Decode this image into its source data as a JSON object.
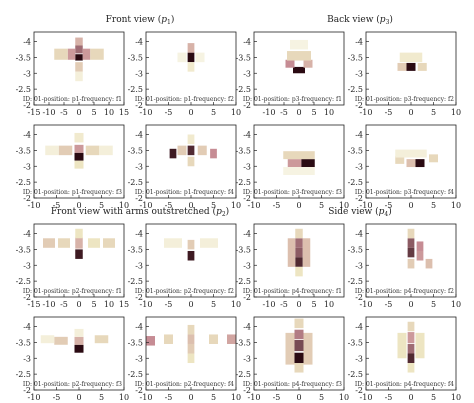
{
  "figure": {
    "section_titles": [
      {
        "main": "Front view",
        "sym": "p",
        "sub": "1"
      },
      {
        "main": "Back view",
        "sym": "p",
        "sub": "3"
      },
      {
        "main": "Front view with arms outstretched",
        "sym": "p",
        "sub": "2"
      },
      {
        "main": "Side view",
        "sym": "p",
        "sub": "4"
      }
    ]
  },
  "chart_data": {
    "type": "heatmap",
    "colormap": {
      "low": "#ffffff",
      "mid1": "#ede5c2",
      "mid2": "#c68c94",
      "high": "#2a0a12"
    },
    "ylim": [
      -4.3,
      -2
    ],
    "y_ticks": [
      "-4",
      "-3.5",
      "-3",
      "-2.5",
      "-2"
    ],
    "x_ticks_wide": [
      "-15",
      "-10",
      "-5",
      "0",
      "5",
      "10",
      "15"
    ],
    "x_ticks_narrow": [
      "-10",
      "-5",
      "0",
      "5",
      "10"
    ],
    "panels": [
      {
        "caption": "ID: 01-position: p1-frequency: f1",
        "xlim": [
          -15,
          15
        ],
        "cells": [
          {
            "x": 0,
            "y": -3.5,
            "v": 1.0,
            "w": 2.5,
            "h": 0.2
          },
          {
            "x": 0,
            "y": -3.75,
            "v": 0.7,
            "w": 2.5,
            "h": 0.25
          },
          {
            "x": 0,
            "y": -4.0,
            "v": 0.45,
            "w": 2.5,
            "h": 0.25
          },
          {
            "x": -2.5,
            "y": -3.6,
            "v": 0.55,
            "w": 2.5,
            "h": 0.35
          },
          {
            "x": 2.5,
            "y": -3.6,
            "v": 0.55,
            "w": 2.5,
            "h": 0.35
          },
          {
            "x": -6,
            "y": -3.6,
            "v": 0.3,
            "w": 4.5,
            "h": 0.35
          },
          {
            "x": 6,
            "y": -3.6,
            "v": 0.3,
            "w": 4.5,
            "h": 0.35
          },
          {
            "x": 0,
            "y": -3.2,
            "v": 0.35,
            "w": 2.5,
            "h": 0.3
          },
          {
            "x": 0,
            "y": -2.9,
            "v": 0.15,
            "w": 2.5,
            "h": 0.3
          }
        ]
      },
      {
        "caption": "ID: 01-position: p1-frequency: f2",
        "xlim": [
          -10,
          10
        ],
        "cells": [
          {
            "x": 0,
            "y": -3.5,
            "v": 1.0,
            "w": 1.5,
            "h": 0.3
          },
          {
            "x": 0,
            "y": -3.8,
            "v": 0.45,
            "w": 1.5,
            "h": 0.3
          },
          {
            "x": 0,
            "y": -3.2,
            "v": 0.2,
            "w": 1.5,
            "h": 0.3
          },
          {
            "x": -2,
            "y": -3.5,
            "v": 0.12,
            "w": 2,
            "h": 0.3
          },
          {
            "x": 2,
            "y": -3.5,
            "v": 0.12,
            "w": 2,
            "h": 0.3
          }
        ]
      },
      {
        "caption": "ID: 01-position: p3-frequency: f1",
        "xlim": [
          -15,
          15
        ],
        "cells": [
          {
            "x": 0,
            "y": -3.1,
            "v": 1.0,
            "w": 4,
            "h": 0.2
          },
          {
            "x": -3,
            "y": -3.3,
            "v": 0.6,
            "w": 3,
            "h": 0.25
          },
          {
            "x": 3,
            "y": -3.3,
            "v": 0.45,
            "w": 3,
            "h": 0.25
          },
          {
            "x": 0,
            "y": -3.55,
            "v": 0.3,
            "w": 8,
            "h": 0.3
          },
          {
            "x": 0,
            "y": -3.9,
            "v": 0.12,
            "w": 6,
            "h": 0.3
          }
        ]
      },
      {
        "caption": "ID: 01-position: p3-frequency: f2",
        "xlim": [
          -10,
          10
        ],
        "cells": [
          {
            "x": 0,
            "y": -3.2,
            "v": 1.0,
            "w": 2,
            "h": 0.25
          },
          {
            "x": -2,
            "y": -3.2,
            "v": 0.35,
            "w": 2,
            "h": 0.25
          },
          {
            "x": 2.5,
            "y": -3.2,
            "v": 0.3,
            "w": 2,
            "h": 0.25
          },
          {
            "x": 0,
            "y": -3.5,
            "v": 0.2,
            "w": 5,
            "h": 0.3
          }
        ]
      },
      {
        "caption": "ID: 01-position: p1-frequency: f3",
        "xlim": [
          -10,
          10
        ],
        "cells": [
          {
            "x": 0,
            "y": -3.3,
            "v": 1.0,
            "w": 2,
            "h": 0.25
          },
          {
            "x": 0,
            "y": -3.55,
            "v": 0.55,
            "w": 2,
            "h": 0.25
          },
          {
            "x": -3,
            "y": -3.5,
            "v": 0.35,
            "w": 3,
            "h": 0.3
          },
          {
            "x": 3,
            "y": -3.5,
            "v": 0.3,
            "w": 3,
            "h": 0.3
          },
          {
            "x": -6,
            "y": -3.5,
            "v": 0.15,
            "w": 3,
            "h": 0.3
          },
          {
            "x": 6,
            "y": -3.5,
            "v": 0.15,
            "w": 3,
            "h": 0.3
          },
          {
            "x": 0,
            "y": -3.9,
            "v": 0.2,
            "w": 2,
            "h": 0.3
          },
          {
            "x": 0,
            "y": -3.05,
            "v": 0.25,
            "w": 2,
            "h": 0.25
          }
        ]
      },
      {
        "caption": "ID: 01-position: p1-frequency: f4",
        "xlim": [
          -10,
          10
        ],
        "cells": [
          {
            "x": -4,
            "y": -3.4,
            "v": 0.95,
            "w": 1.5,
            "h": 0.3
          },
          {
            "x": 0,
            "y": -3.5,
            "v": 0.9,
            "w": 1.5,
            "h": 0.3
          },
          {
            "x": 5,
            "y": -3.4,
            "v": 0.6,
            "w": 1.5,
            "h": 0.3
          },
          {
            "x": -2,
            "y": -3.5,
            "v": 0.35,
            "w": 2,
            "h": 0.3
          },
          {
            "x": 2.5,
            "y": -3.5,
            "v": 0.35,
            "w": 2,
            "h": 0.3
          },
          {
            "x": 0,
            "y": -3.15,
            "v": 0.3,
            "w": 1.5,
            "h": 0.3
          },
          {
            "x": 0,
            "y": -3.85,
            "v": 0.2,
            "w": 1.5,
            "h": 0.3
          }
        ]
      },
      {
        "caption": "ID: 01-position: p3-frequency: f3",
        "xlim": [
          -10,
          10
        ],
        "cells": [
          {
            "x": 2,
            "y": -3.1,
            "v": 1.0,
            "w": 3,
            "h": 0.25
          },
          {
            "x": -1,
            "y": -3.1,
            "v": 0.55,
            "w": 3,
            "h": 0.25
          },
          {
            "x": 0,
            "y": -3.35,
            "v": 0.3,
            "w": 7,
            "h": 0.25
          },
          {
            "x": 0,
            "y": -2.85,
            "v": 0.12,
            "w": 7,
            "h": 0.25
          }
        ]
      },
      {
        "caption": "ID: 01-position: p3-frequency: f4",
        "xlim": [
          -10,
          10
        ],
        "cells": [
          {
            "x": 2,
            "y": -3.1,
            "v": 1.0,
            "w": 2,
            "h": 0.25
          },
          {
            "x": 0,
            "y": -3.1,
            "v": 0.4,
            "w": 2,
            "h": 0.25
          },
          {
            "x": -2.5,
            "y": -3.2,
            "v": 0.3,
            "w": 2,
            "h": 0.25
          },
          {
            "x": 5,
            "y": -3.25,
            "v": 0.3,
            "w": 2,
            "h": 0.25
          },
          {
            "x": 0,
            "y": -3.4,
            "v": 0.15,
            "w": 7,
            "h": 0.25
          }
        ]
      },
      {
        "caption": "ID: 01-position: p2-frequency: f1",
        "xlim": [
          -15,
          15
        ],
        "cells": [
          {
            "x": 0,
            "y": -3.35,
            "v": 0.95,
            "w": 2.5,
            "h": 0.3
          },
          {
            "x": 0,
            "y": -3.7,
            "v": 0.45,
            "w": 2.5,
            "h": 0.35
          },
          {
            "x": -5,
            "y": -3.7,
            "v": 0.3,
            "w": 4,
            "h": 0.3
          },
          {
            "x": -10,
            "y": -3.7,
            "v": 0.35,
            "w": 4,
            "h": 0.3
          },
          {
            "x": 5,
            "y": -3.7,
            "v": 0.25,
            "w": 4,
            "h": 0.3
          },
          {
            "x": 10,
            "y": -3.7,
            "v": 0.3,
            "w": 4,
            "h": 0.3
          },
          {
            "x": 0,
            "y": -4.0,
            "v": 0.25,
            "w": 2.5,
            "h": 0.3
          }
        ]
      },
      {
        "caption": "ID: 01-position: p2-frequency: f2",
        "xlim": [
          -10,
          10
        ],
        "cells": [
          {
            "x": 0,
            "y": -3.3,
            "v": 0.95,
            "w": 1.5,
            "h": 0.3
          },
          {
            "x": 0,
            "y": -3.65,
            "v": 0.35,
            "w": 1.5,
            "h": 0.3
          },
          {
            "x": -4,
            "y": -3.7,
            "v": 0.15,
            "w": 4,
            "h": 0.3
          },
          {
            "x": 4,
            "y": -3.7,
            "v": 0.15,
            "w": 4,
            "h": 0.3
          }
        ]
      },
      {
        "caption": "ID: 01-position: p4-frequency: f1",
        "xlim": [
          -15,
          15
        ],
        "cells": [
          {
            "x": 0,
            "y": -3.7,
            "v": 0.7,
            "w": 2.5,
            "h": 0.3
          },
          {
            "x": 0,
            "y": -3.4,
            "v": 0.75,
            "w": 2.5,
            "h": 0.3
          },
          {
            "x": 0,
            "y": -3.1,
            "v": 0.9,
            "w": 2.5,
            "h": 0.3
          },
          {
            "x": -2.5,
            "y": -3.4,
            "v": 0.4,
            "w": 2.5,
            "h": 0.9
          },
          {
            "x": 2.5,
            "y": -3.4,
            "v": 0.4,
            "w": 2.5,
            "h": 0.9
          },
          {
            "x": 0,
            "y": -4.0,
            "v": 0.3,
            "w": 2.5,
            "h": 0.3
          },
          {
            "x": 0,
            "y": -2.8,
            "v": 0.25,
            "w": 2.5,
            "h": 0.3
          }
        ]
      },
      {
        "caption": "ID: 01-position: p4-frequency: f2",
        "xlim": [
          -10,
          10
        ],
        "cells": [
          {
            "x": 0,
            "y": -3.7,
            "v": 0.75,
            "w": 1.5,
            "h": 0.3
          },
          {
            "x": 0,
            "y": -3.4,
            "v": 0.85,
            "w": 1.5,
            "h": 0.3
          },
          {
            "x": 2,
            "y": -3.6,
            "v": 0.6,
            "w": 1.5,
            "h": 0.3
          },
          {
            "x": 2,
            "y": -3.3,
            "v": 0.55,
            "w": 1.5,
            "h": 0.3
          },
          {
            "x": 4,
            "y": -3.05,
            "v": 0.4,
            "w": 1.5,
            "h": 0.3
          },
          {
            "x": 0,
            "y": -4.0,
            "v": 0.3,
            "w": 1.5,
            "h": 0.3
          },
          {
            "x": 0,
            "y": -3.05,
            "v": 0.35,
            "w": 1.5,
            "h": 0.3
          }
        ]
      },
      {
        "caption": "ID: 01-position: p2-frequency: f3",
        "xlim": [
          -10,
          10
        ],
        "cells": [
          {
            "x": 0,
            "y": -3.3,
            "v": 1.0,
            "w": 2,
            "h": 0.25
          },
          {
            "x": 0,
            "y": -3.55,
            "v": 0.45,
            "w": 2,
            "h": 0.25
          },
          {
            "x": -4,
            "y": -3.55,
            "v": 0.35,
            "w": 3,
            "h": 0.25
          },
          {
            "x": 5,
            "y": -3.6,
            "v": 0.3,
            "w": 3,
            "h": 0.25
          },
          {
            "x": -7,
            "y": -3.6,
            "v": 0.15,
            "w": 3,
            "h": 0.25
          },
          {
            "x": 0,
            "y": -3.8,
            "v": 0.15,
            "w": 2,
            "h": 0.25
          }
        ]
      },
      {
        "caption": "ID: 01-position: p2-frequency: f4",
        "xlim": [
          -10,
          10
        ],
        "cells": [
          {
            "x": -9,
            "y": -3.55,
            "v": 0.6,
            "w": 2,
            "h": 0.3
          },
          {
            "x": 9,
            "y": -3.6,
            "v": 0.5,
            "w": 2,
            "h": 0.3
          },
          {
            "x": 0,
            "y": -3.6,
            "v": 0.4,
            "w": 1.5,
            "h": 0.3
          },
          {
            "x": 0,
            "y": -3.3,
            "v": 0.35,
            "w": 1.5,
            "h": 0.3
          },
          {
            "x": -5,
            "y": -3.6,
            "v": 0.3,
            "w": 2,
            "h": 0.3
          },
          {
            "x": 5,
            "y": -3.6,
            "v": 0.3,
            "w": 2,
            "h": 0.3
          },
          {
            "x": 0,
            "y": -3.0,
            "v": 0.25,
            "w": 1.5,
            "h": 0.3
          },
          {
            "x": 0,
            "y": -3.9,
            "v": 0.3,
            "w": 1.5,
            "h": 0.3
          }
        ]
      },
      {
        "caption": "ID: 01-position: p4-frequency: f3",
        "xlim": [
          -10,
          10
        ],
        "cells": [
          {
            "x": 0,
            "y": -3.0,
            "v": 1.0,
            "w": 2,
            "h": 0.35
          },
          {
            "x": 0,
            "y": -3.4,
            "v": 0.8,
            "w": 2,
            "h": 0.35
          },
          {
            "x": 0,
            "y": -3.75,
            "v": 0.65,
            "w": 2,
            "h": 0.3
          },
          {
            "x": -2,
            "y": -3.3,
            "v": 0.35,
            "w": 2,
            "h": 1.0
          },
          {
            "x": 2,
            "y": -3.3,
            "v": 0.35,
            "w": 2,
            "h": 1.0
          },
          {
            "x": 0,
            "y": -4.1,
            "v": 0.3,
            "w": 2,
            "h": 0.3
          },
          {
            "x": 0,
            "y": -2.7,
            "v": 0.3,
            "w": 2,
            "h": 0.3
          }
        ]
      },
      {
        "caption": "ID: 01-position: p4-frequency: f4",
        "xlim": [
          -10,
          10
        ],
        "cells": [
          {
            "x": 0,
            "y": -3.0,
            "v": 0.9,
            "w": 1.5,
            "h": 0.3
          },
          {
            "x": 0,
            "y": -3.3,
            "v": 0.7,
            "w": 1.5,
            "h": 0.3
          },
          {
            "x": 0,
            "y": -3.65,
            "v": 0.55,
            "w": 1.5,
            "h": 0.35
          },
          {
            "x": -2,
            "y": -3.4,
            "v": 0.25,
            "w": 2,
            "h": 0.8
          },
          {
            "x": 2,
            "y": -3.4,
            "v": 0.25,
            "w": 2,
            "h": 0.8
          },
          {
            "x": 0,
            "y": -4.0,
            "v": 0.3,
            "w": 1.5,
            "h": 0.3
          },
          {
            "x": 0,
            "y": -2.7,
            "v": 0.25,
            "w": 1.5,
            "h": 0.3
          }
        ]
      }
    ]
  }
}
